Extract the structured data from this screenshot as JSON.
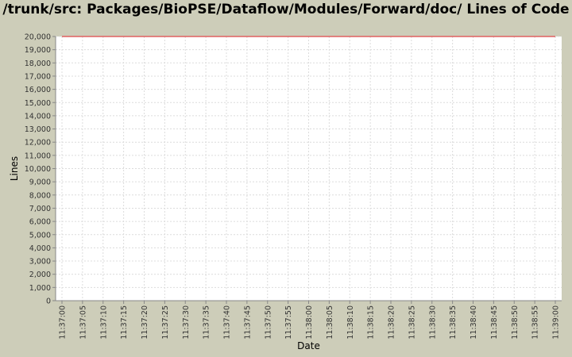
{
  "chart_data": {
    "type": "line",
    "title": "/trunk/src: Packages/BioPSE/Dataflow/Modules/Forward/doc/ Lines of Code",
    "xlabel": "Date",
    "ylabel": "Lines",
    "ylim": [
      0,
      20000
    ],
    "yticks": [
      0,
      1000,
      2000,
      3000,
      4000,
      5000,
      6000,
      7000,
      8000,
      9000,
      10000,
      11000,
      12000,
      13000,
      14000,
      15000,
      16000,
      17000,
      18000,
      19000,
      20000
    ],
    "ytick_labels": [
      "0",
      "1,000",
      "2,000",
      "3,000",
      "4,000",
      "5,000",
      "6,000",
      "7,000",
      "8,000",
      "9,000",
      "10,000",
      "11,000",
      "12,000",
      "13,000",
      "14,000",
      "15,000",
      "16,000",
      "17,000",
      "18,000",
      "19,000",
      "20,000"
    ],
    "xticks": [
      "11:37:00",
      "11:37:05",
      "11:37:10",
      "11:37:15",
      "11:37:20",
      "11:37:25",
      "11:37:30",
      "11:37:35",
      "11:37:40",
      "11:37:45",
      "11:37:50",
      "11:37:55",
      "11:38:00",
      "11:38:05",
      "11:38:10",
      "11:38:15",
      "11:38:20",
      "11:38:25",
      "11:38:30",
      "11:38:35",
      "11:38:40",
      "11:38:45",
      "11:38:50",
      "11:38:55",
      "11:39:00"
    ],
    "grid": true,
    "series": [
      {
        "x": [
          "11:37:00",
          "11:39:00"
        ],
        "values": [
          20000,
          20000
        ],
        "color": "#e06060"
      }
    ]
  }
}
